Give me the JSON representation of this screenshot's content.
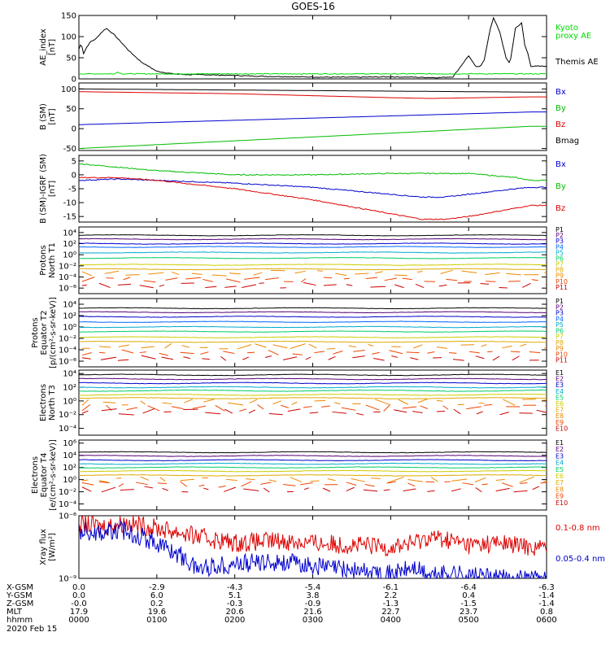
{
  "title": "GOES-16",
  "chart_data": [
    {
      "id": "ae",
      "type": "line",
      "ylabel": "AE_index\n[nT]",
      "ylim": [
        0,
        150
      ],
      "ticks": [
        {
          "v": 150,
          "label": "150"
        },
        {
          "v": 100,
          "label": "100"
        },
        {
          "v": 50,
          "label": "50"
        },
        {
          "v": 0,
          "label": "0"
        }
      ],
      "legend": [
        {
          "text": "Kyoto",
          "color": "#00dd00"
        },
        {
          "text": "proxy AE",
          "color": "#00dd00"
        },
        {
          "text": "Themis AE",
          "color": "#000000"
        }
      ],
      "series": [
        {
          "name": "Themis AE",
          "color": "#000000",
          "x": [
            0,
            3,
            6,
            10,
            15,
            22,
            28,
            35,
            45,
            55,
            65,
            80,
            100,
            120,
            140,
            160,
            200,
            240,
            280,
            320,
            360,
            400,
            430,
            460,
            480,
            490,
            500,
            505,
            510,
            515,
            520,
            528,
            532,
            540,
            548,
            553,
            560,
            568,
            572,
            576,
            580
          ],
          "y": [
            70,
            85,
            60,
            75,
            88,
            95,
            108,
            120,
            105,
            85,
            65,
            40,
            18,
            12,
            10,
            10,
            8,
            6,
            5,
            4,
            4,
            5,
            4,
            3,
            5,
            30,
            55,
            40,
            28,
            30,
            45,
            120,
            145,
            110,
            50,
            35,
            120,
            132,
            80,
            60,
            30
          ]
        },
        {
          "name": "Kyoto proxy AE",
          "color": "#00dd00",
          "x": [
            0,
            45,
            50,
            55,
            580
          ],
          "y": [
            12,
            12,
            16,
            12,
            12
          ]
        }
      ]
    },
    {
      "id": "bsm",
      "type": "line",
      "ylabel": "B (SM)\n[nT]",
      "ylim": [
        -55,
        115
      ],
      "ticks": [
        {
          "v": 100,
          "label": "100"
        },
        {
          "v": 50,
          "label": "50"
        },
        {
          "v": 0,
          "label": "0"
        },
        {
          "v": -50,
          "label": "-50"
        }
      ],
      "legend": [
        {
          "text": "Bx",
          "color": "#0000cc"
        },
        {
          "text": "By",
          "color": "#00bb00"
        },
        {
          "text": "Bz",
          "color": "#dd0000"
        },
        {
          "text": "Bmag",
          "color": "#000000"
        }
      ],
      "series": [
        {
          "name": "Bmag",
          "color": "#000000",
          "x": [
            0,
            580
          ],
          "y": [
            100,
            92
          ]
        },
        {
          "name": "Bz",
          "color": "#dd0000",
          "x": [
            0,
            200,
            400,
            450,
            580
          ],
          "y": [
            93,
            88,
            78,
            76,
            80
          ]
        },
        {
          "name": "Bx",
          "color": "#0000cc",
          "x": [
            0,
            580
          ],
          "y": [
            10,
            42
          ]
        },
        {
          "name": "By",
          "color": "#00bb00",
          "x": [
            0,
            580
          ],
          "y": [
            -50,
            6
          ]
        }
      ]
    },
    {
      "id": "bresid",
      "type": "line",
      "ylabel": "B (SM)-IGRF (SM)\n[nT]",
      "ylim": [
        -17,
        7
      ],
      "ticks": [
        {
          "v": 5,
          "label": "5"
        },
        {
          "v": 0,
          "label": "0"
        },
        {
          "v": -5,
          "label": "-5"
        },
        {
          "v": -10,
          "label": "-10"
        },
        {
          "v": -15,
          "label": "-15"
        }
      ],
      "legend": [
        {
          "text": "Bx",
          "color": "#0000cc"
        },
        {
          "text": "By",
          "color": "#00bb00"
        },
        {
          "text": "Bz",
          "color": "#dd0000"
        }
      ],
      "series": [
        {
          "name": "By",
          "color": "#00bb00",
          "x": [
            0,
            40,
            100,
            200,
            300,
            400,
            500,
            560,
            580
          ],
          "y": [
            4,
            3,
            1.5,
            0,
            0,
            0.5,
            0.5,
            -1,
            -2
          ]
        },
        {
          "name": "Bx",
          "color": "#0000cc",
          "x": [
            0,
            50,
            100,
            200,
            300,
            400,
            440,
            470,
            500,
            560,
            580
          ],
          "y": [
            -2,
            -1.5,
            -2,
            -3,
            -4.5,
            -7,
            -8,
            -8,
            -7,
            -5,
            -4.5
          ]
        },
        {
          "name": "Bz",
          "color": "#dd0000",
          "x": [
            0,
            50,
            100,
            200,
            300,
            400,
            440,
            470,
            500,
            520,
            560,
            580
          ],
          "y": [
            -1,
            -1,
            -2,
            -5,
            -9,
            -14,
            -16,
            -16,
            -15,
            -14,
            -12,
            -11
          ]
        }
      ]
    },
    {
      "id": "protons_t1",
      "type": "line",
      "log": true,
      "ylabel": "Protons\nNorth T1",
      "ylim": [
        -7,
        5
      ],
      "ticks": [
        {
          "v": 4,
          "label": "10⁴"
        },
        {
          "v": 2,
          "label": "10²"
        },
        {
          "v": 0,
          "label": "10⁰"
        },
        {
          "v": -2,
          "label": "10⁻²"
        },
        {
          "v": -4,
          "label": "10⁻⁴"
        },
        {
          "v": -6,
          "label": "10⁻⁶"
        }
      ],
      "levels": [
        {
          "name": "P1",
          "color": "#000000",
          "y": 3.5
        },
        {
          "name": "P2",
          "color": "#550077",
          "y": 2.8
        },
        {
          "name": "P3",
          "color": "#0000cc",
          "y": 2.0
        },
        {
          "name": "P4",
          "color": "#0066ff",
          "y": 1.4
        },
        {
          "name": "P5",
          "color": "#00aacc",
          "y": 0.4
        },
        {
          "name": "P6",
          "color": "#00cc66",
          "y": -0.6
        },
        {
          "name": "P7",
          "color": "#cccc00",
          "y": -1.8
        },
        {
          "name": "P8",
          "color": "#ddaa00",
          "y": -2.6
        },
        {
          "name": "P9",
          "color": "#ee8800",
          "y": -3.3
        },
        {
          "name": "P10",
          "color": "#ee4400",
          "y": -4.5
        },
        {
          "name": "P11",
          "color": "#cc0000",
          "y": -5.5
        }
      ],
      "legend": [
        {
          "text": "P1",
          "color": "#000000"
        },
        {
          "text": "P2",
          "color": "#550077"
        },
        {
          "text": "P3",
          "color": "#0000cc"
        },
        {
          "text": "P4",
          "color": "#0066ff"
        },
        {
          "text": "P5",
          "color": "#00aacc"
        },
        {
          "text": "P6",
          "color": "#00cc66"
        },
        {
          "text": "P7",
          "color": "#cccc00"
        },
        {
          "text": "P8",
          "color": "#ddaa00"
        },
        {
          "text": "P9",
          "color": "#ee8800"
        },
        {
          "text": "P10",
          "color": "#ee4400"
        },
        {
          "text": "P11",
          "color": "#cc0000"
        }
      ]
    },
    {
      "id": "protons_t2",
      "type": "line",
      "log": true,
      "ylabel": "Protons\nEquator T2\n[p/(cm²-s-sr-keV)]",
      "ylim": [
        -7,
        5
      ],
      "ticks": [
        {
          "v": 4,
          "label": "10⁴"
        },
        {
          "v": 2,
          "label": "10²"
        },
        {
          "v": 0,
          "label": "10⁰"
        },
        {
          "v": -2,
          "label": "10⁻²"
        },
        {
          "v": -4,
          "label": "10⁻⁴"
        },
        {
          "v": -6,
          "label": "10⁻⁶"
        }
      ],
      "levels": [
        {
          "name": "P1",
          "color": "#000000",
          "y": 3.3
        },
        {
          "name": "P2",
          "color": "#550077",
          "y": 2.6
        },
        {
          "name": "P3",
          "color": "#0000cc",
          "y": 1.8
        },
        {
          "name": "P4",
          "color": "#0066ff",
          "y": 0.9
        },
        {
          "name": "P5",
          "color": "#00aacc",
          "y": 0.0
        },
        {
          "name": "P6",
          "color": "#00cc66",
          "y": -0.8
        },
        {
          "name": "P7",
          "color": "#cccc00",
          "y": -1.8
        },
        {
          "name": "P8",
          "color": "#ddaa00",
          "y": -2.6
        },
        {
          "name": "P9",
          "color": "#ee8800",
          "y": -3.4
        },
        {
          "name": "P10",
          "color": "#ee4400",
          "y": -4.5
        },
        {
          "name": "P11",
          "color": "#cc0000",
          "y": -5.5
        }
      ],
      "legend": [
        {
          "text": "P1",
          "color": "#000000"
        },
        {
          "text": "P2",
          "color": "#550077"
        },
        {
          "text": "P3",
          "color": "#0000cc"
        },
        {
          "text": "P4",
          "color": "#0066ff"
        },
        {
          "text": "P5",
          "color": "#00aacc"
        },
        {
          "text": "P6",
          "color": "#00cc66"
        },
        {
          "text": "P7",
          "color": "#cccc00"
        },
        {
          "text": "P8",
          "color": "#ddaa00"
        },
        {
          "text": "P9",
          "color": "#ee8800"
        },
        {
          "text": "P10",
          "color": "#ee4400"
        },
        {
          "text": "P11",
          "color": "#cc0000"
        }
      ]
    },
    {
      "id": "electrons_t3",
      "type": "line",
      "log": true,
      "ylabel": "Electrons\nNorth T3",
      "ylim": [
        -5,
        4.5
      ],
      "ticks": [
        {
          "v": 4,
          "label": "10⁴"
        },
        {
          "v": 2,
          "label": "10²"
        },
        {
          "v": 0,
          "label": "10⁰"
        },
        {
          "v": -2,
          "label": "10⁻²"
        },
        {
          "v": -4,
          "label": "10⁻⁴"
        }
      ],
      "levels": [
        {
          "name": "E1",
          "color": "#000000",
          "y": 3.8
        },
        {
          "name": "E2",
          "color": "#550077",
          "y": 3.2
        },
        {
          "name": "E3",
          "color": "#0000cc",
          "y": 2.6
        },
        {
          "name": "E4",
          "color": "#00aacc",
          "y": 2.0
        },
        {
          "name": "E5",
          "color": "#00cc66",
          "y": 1.5
        },
        {
          "name": "E6",
          "color": "#cccc00",
          "y": 0.9
        },
        {
          "name": "E7",
          "color": "#ddaa00",
          "y": 0.4
        },
        {
          "name": "E8",
          "color": "#ee8800",
          "y": -0.2
        },
        {
          "name": "E9",
          "color": "#ee4400",
          "y": -1.0
        },
        {
          "name": "E10",
          "color": "#cc0000",
          "y": -1.6
        }
      ],
      "legend": [
        {
          "text": "E1",
          "color": "#000000"
        },
        {
          "text": "E2",
          "color": "#550077"
        },
        {
          "text": "E3",
          "color": "#0000cc"
        },
        {
          "text": "E4",
          "color": "#00aacc"
        },
        {
          "text": "E5",
          "color": "#00cc66"
        },
        {
          "text": "E6",
          "color": "#cccc00"
        },
        {
          "text": "E7",
          "color": "#ddaa00"
        },
        {
          "text": "E8",
          "color": "#ee8800"
        },
        {
          "text": "E9",
          "color": "#ee4400"
        },
        {
          "text": "E10",
          "color": "#cc0000"
        }
      ]
    },
    {
      "id": "electrons_t4",
      "type": "line",
      "log": true,
      "ylabel": "Electrons\nEquator T4\n[e/(cm²-s-sr-keV)]",
      "ylim": [
        -5,
        6.5
      ],
      "ticks": [
        {
          "v": 6,
          "label": "10⁶"
        },
        {
          "v": 4,
          "label": "10⁴"
        },
        {
          "v": 2,
          "label": "10²"
        },
        {
          "v": 0,
          "label": "10⁰"
        },
        {
          "v": -2,
          "label": "10⁻²"
        },
        {
          "v": -4,
          "label": "10⁻⁴"
        }
      ],
      "levels": [
        {
          "name": "E1",
          "color": "#000000",
          "y": 4.5
        },
        {
          "name": "E2",
          "color": "#550077",
          "y": 3.9
        },
        {
          "name": "E3",
          "color": "#0000cc",
          "y": 3.2
        },
        {
          "name": "E4",
          "color": "#00aacc",
          "y": 2.6
        },
        {
          "name": "E5",
          "color": "#00cc66",
          "y": 2.0
        },
        {
          "name": "E6",
          "color": "#cccc00",
          "y": 1.4
        },
        {
          "name": "E7",
          "color": "#ddaa00",
          "y": 0.7
        },
        {
          "name": "E8",
          "color": "#ee8800",
          "y": 0.0
        },
        {
          "name": "E9",
          "color": "#ee4400",
          "y": -0.8
        },
        {
          "name": "E10",
          "color": "#cc0000",
          "y": -1.6
        }
      ],
      "legend": [
        {
          "text": "E1",
          "color": "#000000"
        },
        {
          "text": "E2",
          "color": "#550077"
        },
        {
          "text": "E3",
          "color": "#0000cc"
        },
        {
          "text": "E4",
          "color": "#00aacc"
        },
        {
          "text": "E5",
          "color": "#00cc66"
        },
        {
          "text": "E6",
          "color": "#cccc00"
        },
        {
          "text": "E7",
          "color": "#ddaa00"
        },
        {
          "text": "E8",
          "color": "#ee8800"
        },
        {
          "text": "E9",
          "color": "#ee4400"
        },
        {
          "text": "E10",
          "color": "#cc0000"
        }
      ]
    },
    {
      "id": "xray",
      "type": "line",
      "log": true,
      "ylabel": "Xray flux\n[W/m²]",
      "ylim": [
        -9,
        -6
      ],
      "ticks": [
        {
          "v": -6,
          "label": "10⁻⁶"
        },
        {
          "v": -9,
          "label": "10⁻⁹"
        }
      ],
      "legend": [
        {
          "text": "0.1-0.8 nm",
          "color": "#dd0000"
        },
        {
          "text": "0.05-0.4 nm",
          "color": "#0000cc"
        }
      ],
      "series": [
        {
          "name": "0.1-0.8 nm",
          "color": "#dd0000",
          "x": [
            0,
            30,
            60,
            100,
            130,
            150,
            200,
            260,
            300,
            350,
            400,
            430,
            450,
            480,
            500,
            540,
            580
          ],
          "y": [
            -6.4,
            -6.5,
            -6.35,
            -6.6,
            -6.8,
            -7.0,
            -7.3,
            -7.2,
            -7.3,
            -7.4,
            -7.5,
            -7.3,
            -7.0,
            -7.2,
            -7.4,
            -7.3,
            -7.5
          ]
        },
        {
          "name": "0.05-0.4 nm",
          "color": "#0000cc",
          "x": [
            0,
            30,
            60,
            100,
            130,
            150,
            200,
            260,
            300,
            350,
            400,
            430,
            450,
            480,
            500,
            540,
            580
          ],
          "y": [
            -6.7,
            -6.8,
            -6.7,
            -7.3,
            -7.9,
            -8.5,
            -8.3,
            -8.2,
            -8.4,
            -8.6,
            -8.8,
            -8.5,
            -8.9,
            -8.7,
            -8.9,
            -9.0,
            -9.0
          ]
        }
      ]
    }
  ],
  "xaxis": {
    "row_labels": [
      "X-GSM",
      "Y-GSM",
      "Z-GSM",
      "MLT",
      "hhmm"
    ],
    "columns": [
      [
        "0.0",
        "0.0",
        "-0.0",
        "17.9",
        "0000"
      ],
      [
        "-2.9",
        "6.0",
        "0.2",
        "19.6",
        "0100"
      ],
      [
        "-4.3",
        "5.1",
        "-0.3",
        "20.6",
        "0200"
      ],
      [
        "-5.4",
        "3.8",
        "-0.9",
        "21.6",
        "0300"
      ],
      [
        "-6.1",
        "2.2",
        "-1.3",
        "22.7",
        "0400"
      ],
      [
        "-6.4",
        "0.4",
        "-1.5",
        "23.7",
        "0500"
      ],
      [
        "-6.3",
        "-1.4",
        "-1.4",
        "0.8",
        "0600"
      ]
    ],
    "date": "2020 Feb 15"
  }
}
